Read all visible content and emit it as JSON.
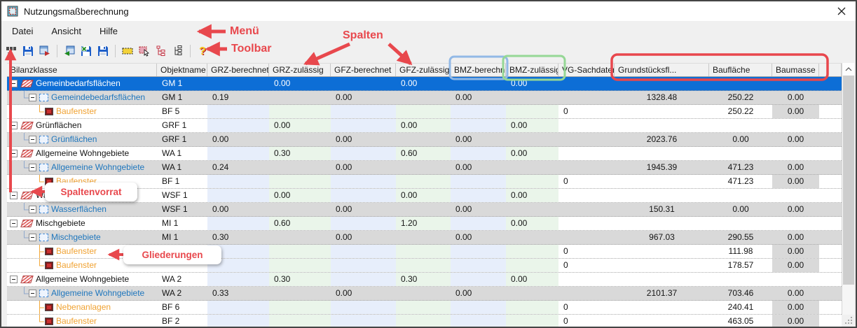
{
  "window": {
    "title": "Nutzungsmaßberechnung"
  },
  "menu": {
    "items": [
      "Datei",
      "Ansicht",
      "Hilfe"
    ]
  },
  "toolbar": {
    "icons": [
      "column-chooser",
      "save",
      "export-red-arrow",
      "import-green-arrow",
      "save-excel",
      "save-copy",
      "selection-frame",
      "highlight-cursor",
      "tree-structure-red",
      "tree-structure-dark",
      "help"
    ]
  },
  "annotations": {
    "menu_label": "Menü",
    "toolbar_label": "Toolbar",
    "spalten_label": "Spalten",
    "spaltenvorrat_label": "Spaltenvorrat",
    "gliederungen_label": "Gliederungen"
  },
  "colors": {
    "selection_blue": "#0d6ed6",
    "alt_row_gray": "#d9d9d9",
    "tint_berechnet_blue": "#e7eefb",
    "tint_zulaessig_green": "#eaf5ea",
    "annotation_red": "#e8484d",
    "bmz_berechnet_highlight": "#92b9e6",
    "bmz_zulaessig_highlight": "#95d795",
    "surface_columns_highlight": "#e8474d",
    "level2_text_blue": "#2077bd",
    "level3_text_orange": "#f0a232"
  },
  "table": {
    "columns": [
      {
        "key": "bilanzklasse",
        "label": "Bilanzklasse"
      },
      {
        "key": "objektname",
        "label": "Objektname"
      },
      {
        "key": "grz_berechnet",
        "label": "GRZ-berechnet"
      },
      {
        "key": "grz_zulaessig",
        "label": "GRZ-zulässig"
      },
      {
        "key": "gfz_berechnet",
        "label": "GFZ-berechnet"
      },
      {
        "key": "gfz_zulaessig",
        "label": "GFZ-zulässig"
      },
      {
        "key": "bmz_berechnet",
        "label": "BMZ-berechnet"
      },
      {
        "key": "bmz_zulaessig",
        "label": "BMZ-zulässig"
      },
      {
        "key": "vg_sachdaten",
        "label": "VG-Sachdaten"
      },
      {
        "key": "grundstuecksflaeche",
        "label": "Grundstücksfl..."
      },
      {
        "key": "bauflaeche",
        "label": "Baufläche"
      },
      {
        "key": "baumasse",
        "label": "Baumasse"
      },
      {
        "key": "filler",
        "label": ""
      }
    ],
    "rows": [
      {
        "level": 1,
        "connector": "none",
        "selected": true,
        "name": "Gemeinbedarfsflächen",
        "objektname": "GM 1",
        "values": {
          "grz_zulaessig": "0.00",
          "gfz_zulaessig": "0.00",
          "bmz_zulaessig": "0.00"
        }
      },
      {
        "level": 2,
        "connector": "end",
        "selected": false,
        "name": "Gemeindebedarfsflächen",
        "objektname": "GM 1",
        "values": {
          "grz_berechnet": "0.19",
          "gfz_berechnet": "0.00",
          "bmz_berechnet": "0.00",
          "grundstuecksflaeche": "1328.48",
          "bauflaeche": "250.22",
          "baumasse": "0.00"
        }
      },
      {
        "level": 3,
        "connector": "end",
        "selected": false,
        "name": "Baufenster",
        "objektname": "BF 5",
        "values": {
          "vg_sachdaten": "0",
          "bauflaeche": "250.22",
          "baumasse": "0.00"
        }
      },
      {
        "level": 1,
        "connector": "none",
        "selected": false,
        "name": "Grünflächen",
        "objektname": "GRF 1",
        "values": {
          "grz_zulaessig": "0.00",
          "gfz_zulaessig": "0.00",
          "bmz_zulaessig": "0.00"
        }
      },
      {
        "level": 2,
        "connector": "end",
        "selected": false,
        "name": "Grünflächen",
        "objektname": "GRF 1",
        "values": {
          "grz_berechnet": "0.00",
          "gfz_berechnet": "0.00",
          "bmz_berechnet": "0.00",
          "grundstuecksflaeche": "2023.76",
          "bauflaeche": "0.00",
          "baumasse": "0.00"
        }
      },
      {
        "level": 1,
        "connector": "none",
        "selected": false,
        "name": "Allgemeine Wohngebiete",
        "objektname": "WA 1",
        "values": {
          "grz_zulaessig": "0.30",
          "gfz_zulaessig": "0.60",
          "bmz_zulaessig": "0.00"
        }
      },
      {
        "level": 2,
        "connector": "end",
        "selected": false,
        "name": "Allgemeine Wohngebiete",
        "objektname": "WA 1",
        "values": {
          "grz_berechnet": "0.24",
          "gfz_berechnet": "0.00",
          "bmz_berechnet": "0.00",
          "grundstuecksflaeche": "1945.39",
          "bauflaeche": "471.23",
          "baumasse": "0.00"
        }
      },
      {
        "level": 3,
        "connector": "end",
        "selected": false,
        "name": "Baufenster",
        "objektname": "BF 1",
        "values": {
          "vg_sachdaten": "0",
          "bauflaeche": "471.23",
          "baumasse": "0.00"
        }
      },
      {
        "level": 1,
        "connector": "none",
        "selected": false,
        "name": "Wasserflächen",
        "objektname": "WSF 1",
        "values": {
          "grz_zulaessig": "0.00",
          "gfz_zulaessig": "0.00",
          "bmz_zulaessig": "0.00"
        }
      },
      {
        "level": 2,
        "connector": "end",
        "selected": false,
        "name": "Wasserflächen",
        "objektname": "WSF 1",
        "values": {
          "grz_berechnet": "0.00",
          "gfz_berechnet": "0.00",
          "bmz_berechnet": "0.00",
          "grundstuecksflaeche": "150.31",
          "bauflaeche": "0.00",
          "baumasse": "0.00"
        }
      },
      {
        "level": 1,
        "connector": "none",
        "selected": false,
        "name": "Mischgebiete",
        "objektname": "MI 1",
        "values": {
          "grz_zulaessig": "0.60",
          "gfz_zulaessig": "1.20",
          "bmz_zulaessig": "0.00"
        }
      },
      {
        "level": 2,
        "connector": "end",
        "selected": false,
        "name": "Mischgebiete",
        "objektname": "MI 1",
        "values": {
          "grz_berechnet": "0.30",
          "gfz_berechnet": "0.00",
          "bmz_berechnet": "0.00",
          "grundstuecksflaeche": "967.03",
          "bauflaeche": "290.55",
          "baumasse": "0.00"
        }
      },
      {
        "level": 3,
        "connector": "tee",
        "selected": false,
        "name": "Baufenster",
        "objektname": "",
        "values": {
          "vg_sachdaten": "0",
          "bauflaeche": "111.98",
          "baumasse": "0.00"
        }
      },
      {
        "level": 3,
        "connector": "end",
        "selected": false,
        "name": "Baufenster",
        "objektname": "",
        "values": {
          "vg_sachdaten": "0",
          "bauflaeche": "178.57",
          "baumasse": "0.00"
        }
      },
      {
        "level": 1,
        "connector": "none",
        "selected": false,
        "name": "Allgemeine Wohngebiete",
        "objektname": "WA 2",
        "values": {
          "grz_zulaessig": "0.30",
          "gfz_zulaessig": "0.30",
          "bmz_zulaessig": "0.00"
        }
      },
      {
        "level": 2,
        "connector": "end",
        "selected": false,
        "name": "Allgemeine Wohngebiete",
        "objektname": "WA 2",
        "values": {
          "grz_berechnet": "0.33",
          "gfz_berechnet": "0.00",
          "bmz_berechnet": "0.00",
          "grundstuecksflaeche": "2101.37",
          "bauflaeche": "703.46",
          "baumasse": "0.00"
        }
      },
      {
        "level": 3,
        "connector": "tee",
        "selected": false,
        "name": "Nebenanlagen",
        "objektname": "BF 6",
        "values": {
          "vg_sachdaten": "0",
          "bauflaeche": "240.41",
          "baumasse": "0.00"
        }
      },
      {
        "level": 3,
        "connector": "end",
        "selected": false,
        "name": "Baufenster",
        "objektname": "BF 2",
        "values": {
          "vg_sachdaten": "0",
          "bauflaeche": "463.05",
          "baumasse": "0.00"
        }
      }
    ]
  }
}
